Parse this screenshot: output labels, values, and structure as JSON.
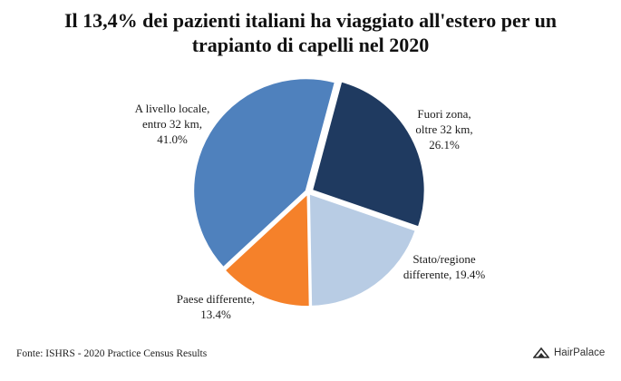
{
  "header": {
    "title_line_1": "Il 13,4% dei pazienti italiani ha viaggiato all'estero per un",
    "title_line_2": "trapianto di capelli nel 2020"
  },
  "chart_data": {
    "type": "pie",
    "title": "Il 13,4% dei pazienti italiani ha viaggiato all'estero per un trapianto di capelli nel 2020",
    "slices": [
      {
        "label_lines": [
          "Fuori zona,",
          "oltre 32 km,",
          "26.1%"
        ],
        "value": 26.1,
        "color": "#1f3a60"
      },
      {
        "label_lines": [
          "Stato/regione",
          "differente, 19.4%"
        ],
        "value": 19.4,
        "color": "#b8cce4"
      },
      {
        "label_lines": [
          "Paese differente,",
          "13.4%"
        ],
        "value": 13.4,
        "color": "#f5812a"
      },
      {
        "label_lines": [
          "A livello locale,",
          "entro 32 km,",
          "41.0%"
        ],
        "value": 41.0,
        "color": "#4f81bd"
      }
    ],
    "legend": "none"
  },
  "footer": {
    "source": "Fonte: ISHRS - 2020 Practice Census Results",
    "logo_text": "HairPalace",
    "logo_icon": "hairpalace-logo-icon"
  }
}
